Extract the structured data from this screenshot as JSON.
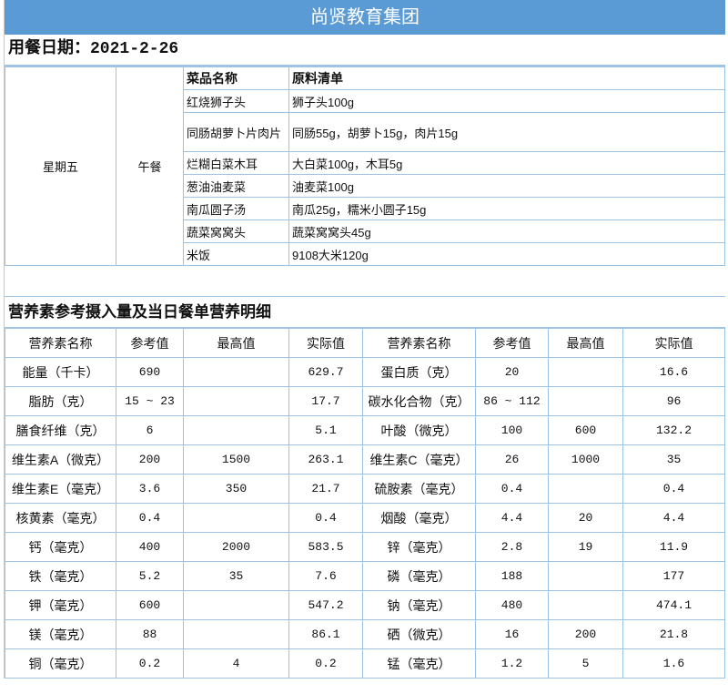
{
  "header": {
    "title": "尚贤教育集团",
    "color": "#5b9bd5"
  },
  "meal_date": "用餐日期：2021-2-26",
  "menu": {
    "day": "星期五",
    "meal": "午餐",
    "columns": [
      "菜品名称",
      "原料清单"
    ],
    "rows": [
      {
        "dish": "红烧狮子头",
        "ingredients": "狮子头100g"
      },
      {
        "dish": "同肠胡萝卜片肉片",
        "ingredients": "同肠55g，胡萝卜15g，肉片15g"
      },
      {
        "dish": "烂糊白菜木耳",
        "ingredients": "大白菜100g，木耳5g"
      },
      {
        "dish": "葱油油麦菜",
        "ingredients": "油麦菜100g"
      },
      {
        "dish": "南瓜圆子汤",
        "ingredients": "南瓜25g，糯米小圆子15g"
      },
      {
        "dish": "蔬菜窝窝头",
        "ingredients": "蔬菜窝窝头45g"
      },
      {
        "dish": "米饭",
        "ingredients": "9108大米120g"
      }
    ]
  },
  "nutrition": {
    "section_title": "营养素参考摄入量及当日餐单营养明细",
    "columns": [
      "营养素名称",
      "参考值",
      "最高值",
      "实际值",
      "营养素名称",
      "参考值",
      "最高值",
      "实际值"
    ],
    "rows": [
      [
        "能量（千卡）",
        "690",
        "",
        "629.7",
        "蛋白质（克）",
        "20",
        "",
        "16.6"
      ],
      [
        "脂肪（克）",
        "15 ~ 23",
        "",
        "17.7",
        "碳水化合物（克）",
        "86 ~ 112",
        "",
        "96"
      ],
      [
        "膳食纤维（克）",
        "6",
        "",
        "5.1",
        "叶酸（微克）",
        "100",
        "600",
        "132.2"
      ],
      [
        "维生素A（微克）",
        "200",
        "1500",
        "263.1",
        "维生素C（毫克）",
        "26",
        "1000",
        "35"
      ],
      [
        "维生素E（毫克）",
        "3.6",
        "350",
        "21.7",
        "硫胺素（毫克）",
        "0.4",
        "",
        "0.4"
      ],
      [
        "核黄素（毫克）",
        "0.4",
        "",
        "0.4",
        "烟酸（毫克）",
        "4.4",
        "20",
        "4.4"
      ],
      [
        "钙（毫克）",
        "400",
        "2000",
        "583.5",
        "锌（毫克）",
        "2.8",
        "19",
        "11.9"
      ],
      [
        "铁（毫克）",
        "5.2",
        "35",
        "7.6",
        "磷（毫克）",
        "188",
        "",
        "177"
      ],
      [
        "钾（毫克）",
        "600",
        "",
        "547.2",
        "钠（毫克）",
        "480",
        "",
        "474.1"
      ],
      [
        "镁（毫克）",
        "88",
        "",
        "86.1",
        "硒（微克）",
        "16",
        "200",
        "21.8"
      ],
      [
        "铜（毫克）",
        "0.2",
        "4",
        "0.2",
        "锰（毫克）",
        "1.2",
        "5",
        "1.6"
      ]
    ]
  }
}
